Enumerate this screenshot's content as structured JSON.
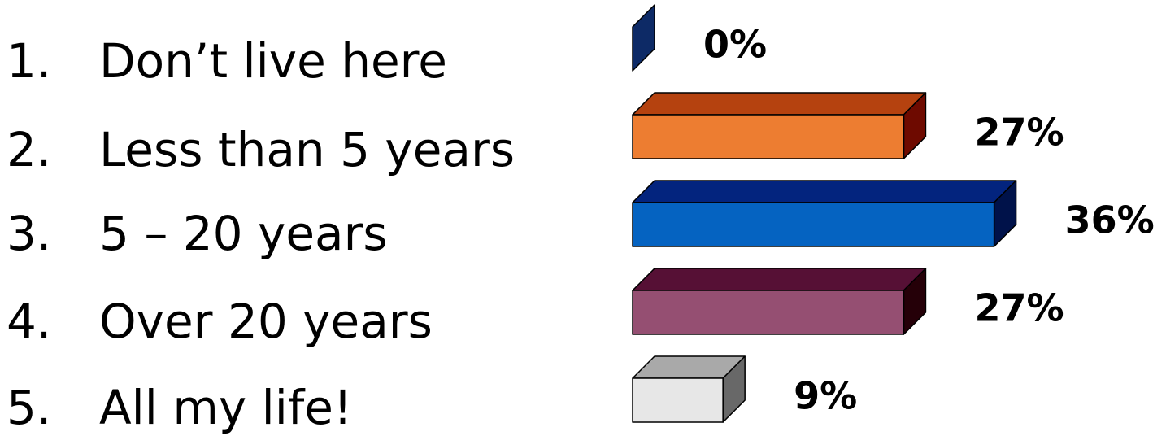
{
  "options": [
    {
      "number": "1.",
      "label": "Don’t live here"
    },
    {
      "number": "2.",
      "label": "Less than 5 years"
    },
    {
      "number": "3.",
      "label": "5 – 20 years"
    },
    {
      "number": "4.",
      "label": "Over 20 years"
    },
    {
      "number": "5.",
      "label": "All my life!"
    }
  ],
  "chart_data": {
    "type": "bar",
    "orientation": "horizontal",
    "style": "3d",
    "categories": [
      "1",
      "2",
      "3",
      "4",
      "5"
    ],
    "values": [
      0,
      27,
      36,
      27,
      9
    ],
    "value_labels": [
      "0%",
      "27%",
      "36%",
      "27%",
      "9%"
    ],
    "unit": "%",
    "colors": [
      {
        "front": "#0d2a66",
        "top": "#0a2150",
        "side": "#061640"
      },
      {
        "front": "#ed7d31",
        "top": "#b5420f",
        "side": "#6e0a00"
      },
      {
        "front": "#0563c1",
        "top": "#03247e",
        "side": "#00124a"
      },
      {
        "front": "#954f72",
        "top": "#561035",
        "side": "#250008"
      },
      {
        "front": "#e7e7e7",
        "top": "#a9a9a9",
        "side": "#686868"
      }
    ],
    "axes_visible": false,
    "grid": false,
    "legend": "none"
  }
}
